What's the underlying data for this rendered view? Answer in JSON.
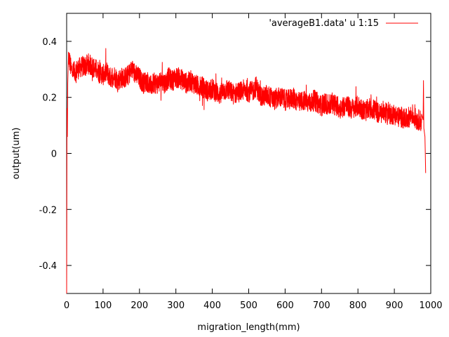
{
  "chart_data": {
    "type": "line",
    "title": "",
    "xlabel": "migration_length(mm)",
    "ylabel": "output(um)",
    "xlim": [
      0,
      1000
    ],
    "ylim": [
      -0.5,
      0.5
    ],
    "xticks": [
      0,
      100,
      200,
      300,
      400,
      500,
      600,
      700,
      800,
      900,
      1000
    ],
    "xtick_labels": [
      "0",
      "100",
      "200",
      "300",
      "400",
      "500",
      "600",
      "700",
      "800",
      "900",
      "1000"
    ],
    "yticks": [
      -0.4,
      -0.2,
      0,
      0.2,
      0.4
    ],
    "ytick_labels": [
      "-0.4",
      "-0.2",
      "0",
      "0.2",
      "0.4"
    ],
    "grid": false,
    "legend_position": "top-right",
    "series": [
      {
        "name": "'averageB1.data' u 1:15",
        "color": "#ff0000",
        "x": [
          0,
          1,
          2,
          3,
          4,
          5,
          8,
          12,
          20,
          30,
          40,
          50,
          60,
          70,
          80,
          90,
          100,
          110,
          120,
          130,
          140,
          150,
          160,
          170,
          180,
          190,
          200,
          210,
          220,
          230,
          240,
          250,
          260,
          270,
          280,
          290,
          300,
          310,
          320,
          330,
          340,
          350,
          360,
          370,
          380,
          390,
          400,
          410,
          420,
          430,
          440,
          450,
          460,
          470,
          480,
          490,
          500,
          510,
          520,
          530,
          540,
          550,
          560,
          570,
          580,
          590,
          600,
          610,
          620,
          630,
          640,
          650,
          660,
          670,
          680,
          690,
          700,
          710,
          720,
          730,
          740,
          750,
          760,
          770,
          780,
          790,
          800,
          810,
          820,
          830,
          840,
          850,
          860,
          870,
          880,
          890,
          900,
          910,
          920,
          930,
          940,
          950,
          960,
          970,
          975,
          980,
          982,
          984,
          985,
          986
        ],
        "y": [
          -0.5,
          0.16,
          0.06,
          0.25,
          0.3,
          0.35,
          0.33,
          0.3,
          0.29,
          0.3,
          0.31,
          0.31,
          0.32,
          0.31,
          0.3,
          0.29,
          0.28,
          0.29,
          0.27,
          0.28,
          0.26,
          0.27,
          0.27,
          0.28,
          0.3,
          0.28,
          0.27,
          0.25,
          0.26,
          0.24,
          0.25,
          0.25,
          0.26,
          0.25,
          0.27,
          0.26,
          0.27,
          0.27,
          0.26,
          0.25,
          0.26,
          0.25,
          0.24,
          0.24,
          0.23,
          0.22,
          0.23,
          0.22,
          0.21,
          0.22,
          0.23,
          0.22,
          0.21,
          0.22,
          0.22,
          0.23,
          0.22,
          0.22,
          0.24,
          0.21,
          0.2,
          0.21,
          0.2,
          0.19,
          0.2,
          0.2,
          0.19,
          0.19,
          0.2,
          0.19,
          0.18,
          0.19,
          0.18,
          0.18,
          0.19,
          0.18,
          0.17,
          0.18,
          0.17,
          0.18,
          0.17,
          0.16,
          0.17,
          0.17,
          0.16,
          0.16,
          0.17,
          0.16,
          0.15,
          0.16,
          0.16,
          0.15,
          0.14,
          0.15,
          0.14,
          0.14,
          0.14,
          0.13,
          0.13,
          0.12,
          0.13,
          0.14,
          0.12,
          0.12,
          0.11,
          0.1,
          0.08,
          0.06,
          0.0,
          -0.07
        ]
      }
    ]
  }
}
